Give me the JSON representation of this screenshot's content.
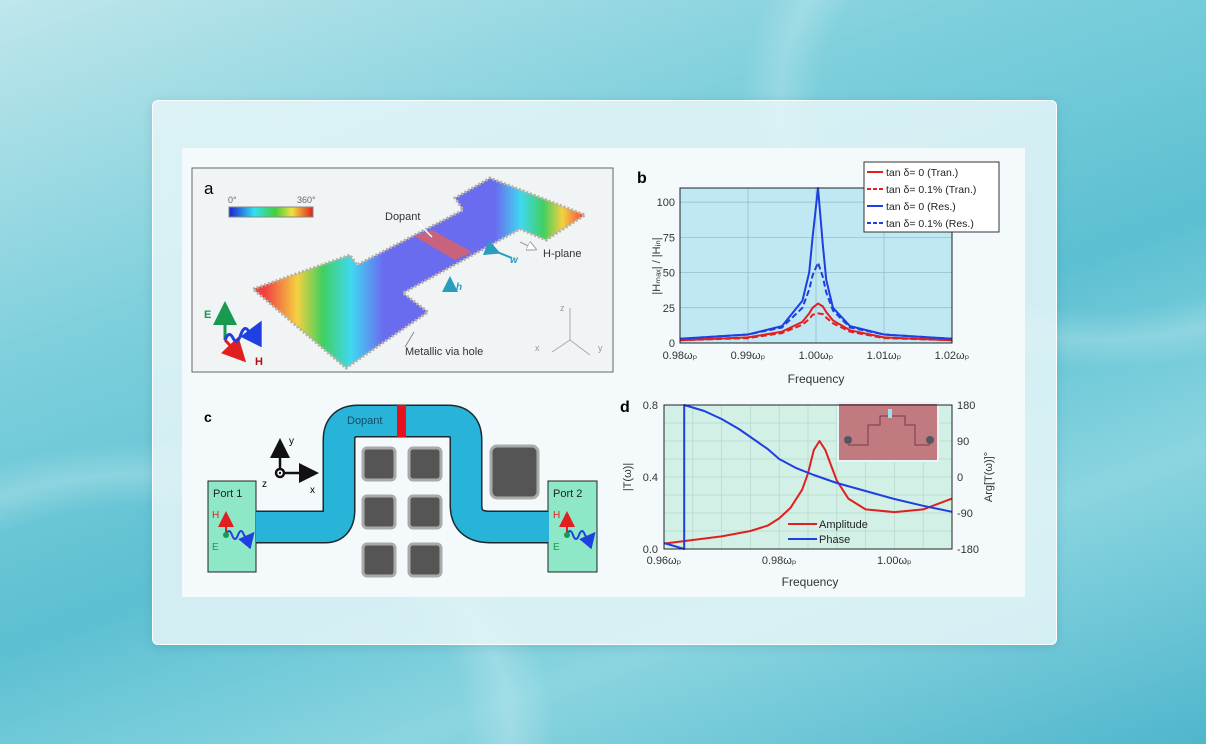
{
  "colors": {
    "accent_blue": "#1f3fe0",
    "accent_red": "#e02020",
    "waveguide": "#27b4d8",
    "port": "#8ee8c8",
    "plot_bg_b": "#bfe8f3",
    "plot_bg_d": "#d2f0e6"
  },
  "panel_a": {
    "label": "a",
    "colorbar_min": "0°",
    "colorbar_max": "360°",
    "dopant": "Dopant",
    "h_plane": "H-plane",
    "w": "w",
    "h": "h",
    "via": "Metallic via hole",
    "e": "E",
    "hfield": "H",
    "axis_x": "x",
    "axis_y": "y",
    "axis_z": "z"
  },
  "panel_c": {
    "label": "c",
    "dopant": "Dopant",
    "port1": "Port 1",
    "port2": "Port 2",
    "h": "H",
    "e": "E",
    "axis_x": "x",
    "axis_y": "y",
    "axis_z": "z"
  },
  "chart_data": [
    {
      "panel": "b",
      "type": "line",
      "xlabel": "Frequency",
      "ylabel": "|Hₘₐₓ| / |Hᵢₙ|",
      "xlim": [
        0.98,
        1.02
      ],
      "ylim": [
        0,
        110
      ],
      "xticks": [
        0.98,
        0.99,
        1.0,
        1.01,
        1.02
      ],
      "xtick_labels": [
        "0.98ωₚ",
        "0.99ωₚ",
        "1.00ωₚ",
        "1.01ωₚ",
        "1.02ωₚ"
      ],
      "yticks": [
        0,
        25,
        50,
        75,
        100
      ],
      "ytick_labels": [
        "0",
        "25",
        "50",
        "75",
        "100"
      ],
      "grid": true,
      "legend_position": "top-right",
      "x": [
        0.98,
        0.99,
        0.995,
        0.998,
        0.999,
        0.9995,
        1.0003,
        1.001,
        1.0015,
        1.0025,
        1.005,
        1.01,
        1.02
      ],
      "series": [
        {
          "name": "tan δ= 0 (Tran.)",
          "color": "#e02020",
          "dash": false,
          "values": [
            2,
            4,
            8,
            15,
            21,
            25,
            28,
            26,
            22,
            16,
            9,
            4,
            2
          ]
        },
        {
          "name": "tan δ= 0.1% (Tran.)",
          "color": "#e02020",
          "dash": true,
          "values": [
            2,
            3.5,
            7,
            13,
            17,
            20,
            21,
            20.5,
            18,
            14,
            8,
            3.5,
            2
          ]
        },
        {
          "name": "tan δ= 0 (Res.)",
          "color": "#1f3fe0",
          "dash": false,
          "values": [
            3,
            6,
            12,
            30,
            50,
            75,
            110,
            70,
            45,
            25,
            12,
            6,
            3
          ]
        },
        {
          "name": "tan δ= 0.1% (Res.)",
          "color": "#1f3fe0",
          "dash": true,
          "values": [
            3,
            6,
            11,
            25,
            38,
            48,
            57,
            47,
            36,
            23,
            11,
            6,
            3
          ]
        }
      ]
    },
    {
      "panel": "d",
      "type": "line",
      "xlabel": "Frequency",
      "ylabel": "|T(ω)|",
      "ylabel_right": "Arg[T(ω)]°",
      "xlim": [
        0.96,
        1.01
      ],
      "ylim": [
        0,
        0.8
      ],
      "ylim_right": [
        -180,
        180
      ],
      "xticks": [
        0.96,
        0.98,
        1.0
      ],
      "xtick_labels": [
        "0.96ωₚ",
        "0.98ωₚ",
        "1.00ωₚ"
      ],
      "yticks": [
        0,
        0.4,
        0.8
      ],
      "ytick_labels": [
        "0.0",
        "0.4",
        "0.8"
      ],
      "yticks_right": [
        -180,
        -90,
        0,
        90,
        180
      ],
      "ytick_labels_right": [
        "-180",
        "-90",
        "0",
        "90",
        "180"
      ],
      "grid": true,
      "legend_position": "bottom-center",
      "inset": "photo of fabricated sample",
      "series": [
        {
          "name": "Amplitude",
          "color": "#e02020",
          "axis": "left",
          "x": [
            0.96,
            0.965,
            0.97,
            0.975,
            0.978,
            0.98,
            0.982,
            0.984,
            0.985,
            0.986,
            0.987,
            0.988,
            0.99,
            0.992,
            0.995,
            1.0,
            1.005,
            1.01
          ],
          "values": [
            0.03,
            0.05,
            0.07,
            0.1,
            0.13,
            0.17,
            0.23,
            0.33,
            0.42,
            0.55,
            0.6,
            0.55,
            0.38,
            0.28,
            0.22,
            0.205,
            0.22,
            0.28
          ]
        },
        {
          "name": "Phase",
          "color": "#1f3fe0",
          "axis": "right",
          "x": [
            0.96,
            0.9635,
            0.9635,
            0.967,
            0.97,
            0.973,
            0.976,
            0.978,
            0.98,
            0.983,
            0.986,
            0.99,
            0.995,
            1.0,
            1.005,
            1.01
          ],
          "values": [
            -165,
            -180,
            180,
            165,
            145,
            120,
            90,
            70,
            45,
            22,
            5,
            -15,
            -35,
            -55,
            -72,
            -87
          ]
        }
      ]
    }
  ]
}
